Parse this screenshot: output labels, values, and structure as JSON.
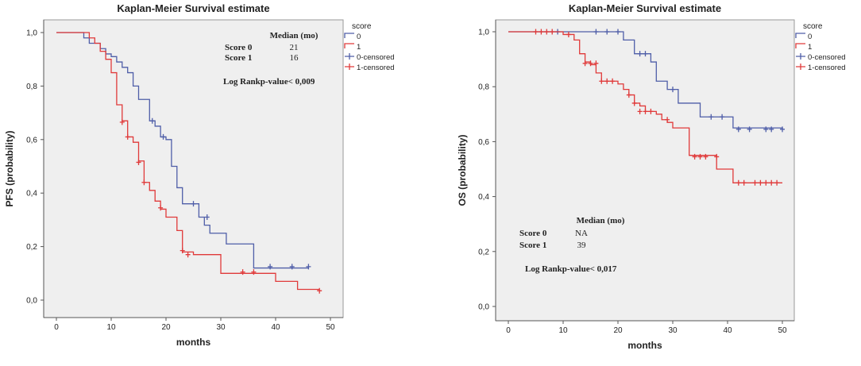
{
  "colors": {
    "score0": "#4f5ea8",
    "score1": "#e03a3a",
    "plot_bg": "#efefef",
    "axis": "#555555",
    "text": "#222222"
  },
  "chart_data": [
    {
      "id": "pfs",
      "type": "line",
      "title": "Kaplan-Meier Survival estimate",
      "xlabel": "months",
      "ylabel": "PFS (probability)",
      "xlim": [
        0,
        50
      ],
      "ylim": [
        0.0,
        1.0
      ],
      "xticks": [
        0,
        10,
        20,
        30,
        40,
        50
      ],
      "yticks": [
        0.0,
        0.2,
        0.4,
        0.6,
        0.8,
        1.0
      ],
      "ytick_labels": [
        "0,0",
        "0,2",
        "0,4",
        "0,6",
        "0,8",
        "1,0"
      ],
      "legend": {
        "title": "score",
        "position": "outside-right-top",
        "entries": [
          "0",
          "1",
          "0-censored",
          "1-censored"
        ]
      },
      "annotation": {
        "header": "Median (mo)",
        "rows": [
          {
            "label": "Score 0",
            "value": "21"
          },
          {
            "label": "Score 1",
            "value": "16"
          }
        ],
        "pvalue": "Log Rankp-value< 0,009",
        "position": "upper-right"
      },
      "series": [
        {
          "name": "0",
          "color_key": "score0",
          "steps": [
            [
              0,
              1.0
            ],
            [
              5,
              0.98
            ],
            [
              6,
              0.96
            ],
            [
              8,
              0.94
            ],
            [
              9,
              0.92
            ],
            [
              10,
              0.91
            ],
            [
              11,
              0.89
            ],
            [
              12,
              0.87
            ],
            [
              13,
              0.85
            ],
            [
              14,
              0.8
            ],
            [
              15,
              0.75
            ],
            [
              17,
              0.67
            ],
            [
              18,
              0.65
            ],
            [
              19,
              0.61
            ],
            [
              20,
              0.6
            ],
            [
              21,
              0.5
            ],
            [
              22,
              0.42
            ],
            [
              23,
              0.36
            ],
            [
              26,
              0.31
            ],
            [
              27,
              0.28
            ],
            [
              28,
              0.25
            ],
            [
              31,
              0.21
            ],
            [
              36,
              0.12
            ],
            [
              46,
              0.12
            ]
          ],
          "censored": [
            [
              17.5,
              0.67
            ],
            [
              19.5,
              0.61
            ],
            [
              25,
              0.36
            ],
            [
              27.5,
              0.31
            ],
            [
              39,
              0.125
            ],
            [
              43,
              0.125
            ],
            [
              46,
              0.125
            ]
          ]
        },
        {
          "name": "1",
          "color_key": "score1",
          "steps": [
            [
              0,
              1.0
            ],
            [
              6,
              0.98
            ],
            [
              7,
              0.96
            ],
            [
              8,
              0.93
            ],
            [
              9,
              0.9
            ],
            [
              10,
              0.85
            ],
            [
              11,
              0.73
            ],
            [
              12,
              0.67
            ],
            [
              13,
              0.61
            ],
            [
              14,
              0.59
            ],
            [
              15,
              0.52
            ],
            [
              16,
              0.44
            ],
            [
              17,
              0.41
            ],
            [
              18,
              0.37
            ],
            [
              19,
              0.34
            ],
            [
              20,
              0.31
            ],
            [
              22,
              0.26
            ],
            [
              23,
              0.18
            ],
            [
              25,
              0.17
            ],
            [
              26,
              0.17
            ],
            [
              30,
              0.1
            ],
            [
              40,
              0.07
            ],
            [
              44,
              0.04
            ],
            [
              48,
              0.04
            ]
          ],
          "censored": [
            [
              12,
              0.665
            ],
            [
              13,
              0.61
            ],
            [
              15,
              0.515
            ],
            [
              16,
              0.44
            ],
            [
              19,
              0.345
            ],
            [
              23,
              0.185
            ],
            [
              24,
              0.17
            ],
            [
              34,
              0.105
            ],
            [
              36,
              0.105
            ],
            [
              48,
              0.035
            ]
          ]
        }
      ]
    },
    {
      "id": "os",
      "type": "line",
      "title": "Kaplan-Meier Survival estimate",
      "xlabel": "months",
      "ylabel": "OS (probability)",
      "xlim": [
        0,
        50
      ],
      "ylim": [
        0.0,
        1.0
      ],
      "xticks": [
        0,
        10,
        20,
        30,
        40,
        50
      ],
      "yticks": [
        0.0,
        0.2,
        0.4,
        0.6,
        0.8,
        1.0
      ],
      "ytick_labels": [
        "0,0",
        "0,2",
        "0,4",
        "0,6",
        "0,8",
        "1,0"
      ],
      "legend": {
        "title": "score",
        "position": "outside-right-top",
        "entries": [
          "0",
          "1",
          "0-censored",
          "1-censored"
        ]
      },
      "annotation": {
        "header": "Median (mo)",
        "rows": [
          {
            "label": "Score 0",
            "value": "NA"
          },
          {
            "label": "Score 1",
            "value": "39"
          }
        ],
        "pvalue": "Log Rankp-value< 0,017",
        "position": "lower-left"
      },
      "series": [
        {
          "name": "0",
          "color_key": "score0",
          "steps": [
            [
              0,
              1.0
            ],
            [
              21,
              0.97
            ],
            [
              23,
              0.92
            ],
            [
              26,
              0.89
            ],
            [
              27,
              0.82
            ],
            [
              29,
              0.79
            ],
            [
              31,
              0.74
            ],
            [
              35,
              0.69
            ],
            [
              41,
              0.65
            ],
            [
              50,
              0.645
            ]
          ],
          "censored": [
            [
              9,
              1.0
            ],
            [
              16,
              1.0
            ],
            [
              18,
              1.0
            ],
            [
              20,
              1.0
            ],
            [
              24,
              0.92
            ],
            [
              25,
              0.92
            ],
            [
              30,
              0.79
            ],
            [
              37,
              0.69
            ],
            [
              39,
              0.69
            ],
            [
              42,
              0.645
            ],
            [
              44,
              0.645
            ],
            [
              47,
              0.645
            ],
            [
              48,
              0.645
            ],
            [
              50,
              0.645
            ]
          ]
        },
        {
          "name": "1",
          "color_key": "score1",
          "steps": [
            [
              0,
              1.0
            ],
            [
              10,
              0.99
            ],
            [
              12,
              0.97
            ],
            [
              13,
              0.92
            ],
            [
              14,
              0.89
            ],
            [
              15,
              0.88
            ],
            [
              16,
              0.85
            ],
            [
              17,
              0.82
            ],
            [
              20,
              0.81
            ],
            [
              21,
              0.79
            ],
            [
              22,
              0.77
            ],
            [
              23,
              0.74
            ],
            [
              24,
              0.73
            ],
            [
              25,
              0.71
            ],
            [
              27,
              0.7
            ],
            [
              28,
              0.68
            ],
            [
              29,
              0.67
            ],
            [
              30,
              0.65
            ],
            [
              33,
              0.55
            ],
            [
              38,
              0.5
            ],
            [
              41,
              0.45
            ],
            [
              50,
              0.45
            ]
          ],
          "censored": [
            [
              5,
              1.0
            ],
            [
              6,
              1.0
            ],
            [
              7,
              1.0
            ],
            [
              8,
              1.0
            ],
            [
              11,
              0.99
            ],
            [
              14,
              0.885
            ],
            [
              15,
              0.885
            ],
            [
              16,
              0.885
            ],
            [
              17,
              0.82
            ],
            [
              18,
              0.82
            ],
            [
              19,
              0.82
            ],
            [
              22,
              0.77
            ],
            [
              23,
              0.74
            ],
            [
              24,
              0.71
            ],
            [
              25,
              0.71
            ],
            [
              26,
              0.71
            ],
            [
              29,
              0.68
            ],
            [
              34,
              0.545
            ],
            [
              35,
              0.545
            ],
            [
              36,
              0.545
            ],
            [
              38,
              0.545
            ],
            [
              42,
              0.45
            ],
            [
              43,
              0.45
            ],
            [
              45,
              0.45
            ],
            [
              46,
              0.45
            ],
            [
              47,
              0.45
            ],
            [
              48,
              0.45
            ],
            [
              49,
              0.45
            ]
          ]
        }
      ]
    }
  ]
}
